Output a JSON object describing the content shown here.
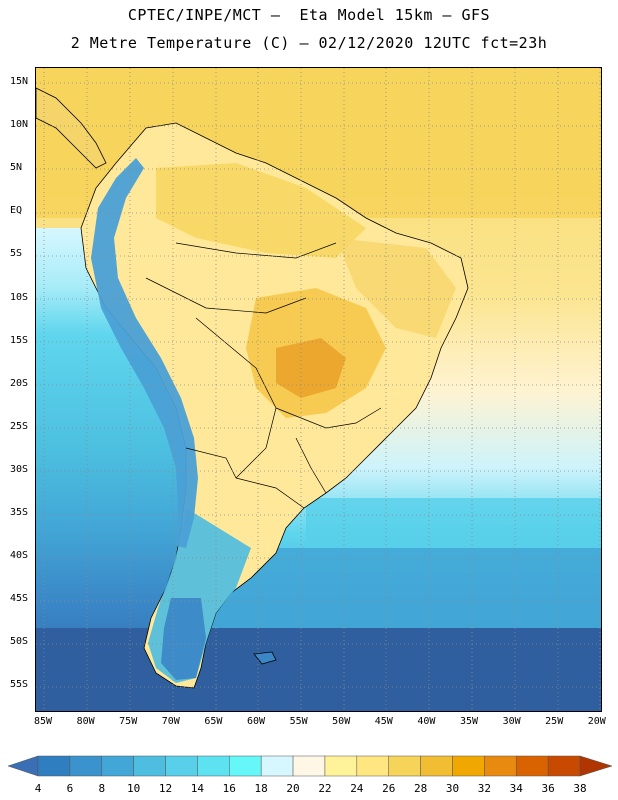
{
  "header": {
    "title_line1": "CPTEC/INPE/MCT –  Eta Model 15km – GFS",
    "title_line2": "2 Metre Temperature (C) – 02/12/2020 12UTC fct=23h"
  },
  "map": {
    "lat_labels": [
      "15N",
      "10N",
      "5N",
      "EQ",
      "5S",
      "10S",
      "15S",
      "20S",
      "25S",
      "30S",
      "35S",
      "40S",
      "45S",
      "50S",
      "55S"
    ],
    "lon_labels": [
      "85W",
      "80W",
      "75W",
      "70W",
      "65W",
      "60W",
      "55W",
      "50W",
      "45W",
      "40W",
      "35W",
      "30W",
      "25W",
      "20W"
    ]
  },
  "colorbar": {
    "levels": [
      "4",
      "6",
      "8",
      "10",
      "12",
      "14",
      "16",
      "18",
      "20",
      "22",
      "24",
      "26",
      "28",
      "30",
      "32",
      "34",
      "36",
      "38"
    ],
    "colors": [
      "#3b6fb5",
      "#2f7fc0",
      "#3a93cc",
      "#42a6d6",
      "#4dbde0",
      "#58d0ea",
      "#5de2f1",
      "#66f7f9",
      "#d6f7ff",
      "#fff7e6",
      "#fff39a",
      "#ffe680",
      "#f6d45a",
      "#f0bd33",
      "#f0a800",
      "#e88a10",
      "#d96300",
      "#c84a00",
      "#b03500"
    ]
  },
  "palette": {
    "ocean_deep": "#2f68aa",
    "ocean_mid": "#3fa5d2",
    "ocean_light": "#4fc6e2",
    "ocean_pale": "#7fdff2",
    "land_warm": "#f5d46a",
    "land_mild": "#ffe89a",
    "land_hot": "#eeb03a",
    "andes": "#4a8ac8",
    "border": "#000000"
  }
}
